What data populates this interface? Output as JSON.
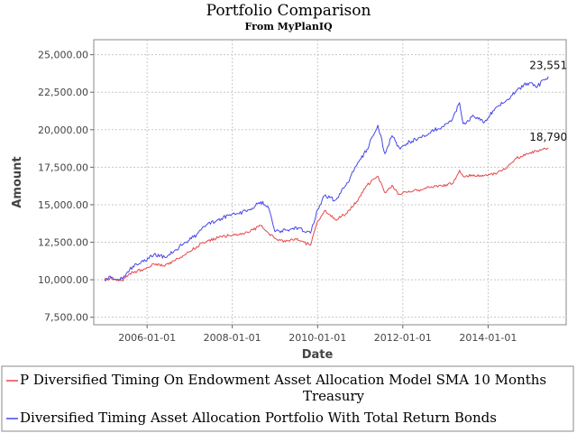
{
  "chart_data": {
    "type": "line",
    "title": "Portfolio Comparison",
    "subtitle": "From MyPlanIQ",
    "xlabel": "Date",
    "ylabel": "Amount",
    "xlim": [
      "2004-10-01",
      "2015-11-01"
    ],
    "ylim": [
      7000,
      26000
    ],
    "y_ticks": [
      {
        "value": 7500,
        "label": "7,500.00"
      },
      {
        "value": 10000,
        "label": "10,000.00"
      },
      {
        "value": 12500,
        "label": "12,500.00"
      },
      {
        "value": 15000,
        "label": "15,000.00"
      },
      {
        "value": 17500,
        "label": "17,500.00"
      },
      {
        "value": 20000,
        "label": "20,000.00"
      },
      {
        "value": 22500,
        "label": "22,500.00"
      },
      {
        "value": 25000,
        "label": "25,000.00"
      }
    ],
    "x_ticks": [
      {
        "value": "2006-01-01",
        "label": "2006-01-01"
      },
      {
        "value": "2008-01-01",
        "label": "2008-01-01"
      },
      {
        "value": "2010-01-01",
        "label": "2010-01-01"
      },
      {
        "value": "2012-01-01",
        "label": "2012-01-01"
      },
      {
        "value": "2014-01-01",
        "label": "2014-01-01"
      }
    ],
    "grid": true,
    "legend_position": "bottom",
    "series": [
      {
        "name": "P Diversified Timing On Endowment Asset Allocation Model SMA 10 Months Treasury",
        "legend_lines": [
          "P Diversified Timing On Endowment Asset Allocation Model SMA 10 Months",
          "Treasury"
        ],
        "color": "#e8474a",
        "end_label": "18,790",
        "points": [
          [
            "2005-01-01",
            10000
          ],
          [
            "2005-03-01",
            10080
          ],
          [
            "2005-06-01",
            9950
          ],
          [
            "2005-09-01",
            10500
          ],
          [
            "2005-12-01",
            10700
          ],
          [
            "2006-03-01",
            11050
          ],
          [
            "2006-06-01",
            10900
          ],
          [
            "2006-09-01",
            11300
          ],
          [
            "2006-12-01",
            11700
          ],
          [
            "2007-03-01",
            12200
          ],
          [
            "2007-06-01",
            12600
          ],
          [
            "2007-09-01",
            12800
          ],
          [
            "2007-12-01",
            12950
          ],
          [
            "2008-03-01",
            13000
          ],
          [
            "2008-06-01",
            13200
          ],
          [
            "2008-09-01",
            13600
          ],
          [
            "2008-11-01",
            13150
          ],
          [
            "2009-01-01",
            12750
          ],
          [
            "2009-04-01",
            12550
          ],
          [
            "2009-07-01",
            12700
          ],
          [
            "2009-11-01",
            12300
          ],
          [
            "2010-01-01",
            13900
          ],
          [
            "2010-03-01",
            14600
          ],
          [
            "2010-06-01",
            14000
          ],
          [
            "2010-09-01",
            14400
          ],
          [
            "2010-12-01",
            15200
          ],
          [
            "2011-03-01",
            16300
          ],
          [
            "2011-06-01",
            16900
          ],
          [
            "2011-08-01",
            15800
          ],
          [
            "2011-10-01",
            16300
          ],
          [
            "2011-12-01",
            15700
          ],
          [
            "2012-03-01",
            15850
          ],
          [
            "2012-06-01",
            16000
          ],
          [
            "2012-09-01",
            16200
          ],
          [
            "2012-12-01",
            16250
          ],
          [
            "2013-03-01",
            16400
          ],
          [
            "2013-05-01",
            17300
          ],
          [
            "2013-06-01",
            16900
          ],
          [
            "2013-09-01",
            17000
          ],
          [
            "2013-12-01",
            16950
          ],
          [
            "2014-03-01",
            17100
          ],
          [
            "2014-06-01",
            17400
          ],
          [
            "2014-09-01",
            18100
          ],
          [
            "2014-12-01",
            18400
          ],
          [
            "2015-03-01",
            18600
          ],
          [
            "2015-06-01",
            18790
          ]
        ]
      },
      {
        "name": "Diversified Timing Asset Allocation Portfolio With Total Return Bonds",
        "legend_lines": [
          "Diversified Timing Asset Allocation Portfolio With Total Return Bonds"
        ],
        "color": "#4747e8",
        "end_label": "23,551",
        "points": [
          [
            "2005-01-01",
            10000
          ],
          [
            "2005-03-01",
            10150
          ],
          [
            "2005-06-01",
            10050
          ],
          [
            "2005-09-01",
            10900
          ],
          [
            "2005-12-01",
            11200
          ],
          [
            "2006-03-01",
            11700
          ],
          [
            "2006-06-01",
            11500
          ],
          [
            "2006-09-01",
            12000
          ],
          [
            "2006-12-01",
            12500
          ],
          [
            "2007-03-01",
            13000
          ],
          [
            "2007-06-01",
            13700
          ],
          [
            "2007-09-01",
            14000
          ],
          [
            "2007-12-01",
            14300
          ],
          [
            "2008-03-01",
            14400
          ],
          [
            "2008-06-01",
            14700
          ],
          [
            "2008-09-01",
            15200
          ],
          [
            "2008-11-01",
            14900
          ],
          [
            "2009-01-01",
            13200
          ],
          [
            "2009-04-01",
            13300
          ],
          [
            "2009-07-01",
            13500
          ],
          [
            "2009-11-01",
            13100
          ],
          [
            "2010-01-01",
            14700
          ],
          [
            "2010-03-01",
            15600
          ],
          [
            "2010-06-01",
            15300
          ],
          [
            "2010-09-01",
            16300
          ],
          [
            "2010-12-01",
            17600
          ],
          [
            "2011-03-01",
            18700
          ],
          [
            "2011-06-01",
            20300
          ],
          [
            "2011-08-01",
            18400
          ],
          [
            "2011-10-01",
            19600
          ],
          [
            "2011-12-01",
            18800
          ],
          [
            "2012-03-01",
            19200
          ],
          [
            "2012-06-01",
            19500
          ],
          [
            "2012-09-01",
            19900
          ],
          [
            "2012-12-01",
            20200
          ],
          [
            "2013-03-01",
            20700
          ],
          [
            "2013-05-01",
            21800
          ],
          [
            "2013-06-01",
            20400
          ],
          [
            "2013-09-01",
            20900
          ],
          [
            "2013-12-01",
            20500
          ],
          [
            "2014-03-01",
            21400
          ],
          [
            "2014-06-01",
            21900
          ],
          [
            "2014-09-01",
            22600
          ],
          [
            "2014-12-01",
            23100
          ],
          [
            "2015-03-01",
            22900
          ],
          [
            "2015-06-01",
            23551
          ]
        ]
      }
    ]
  }
}
